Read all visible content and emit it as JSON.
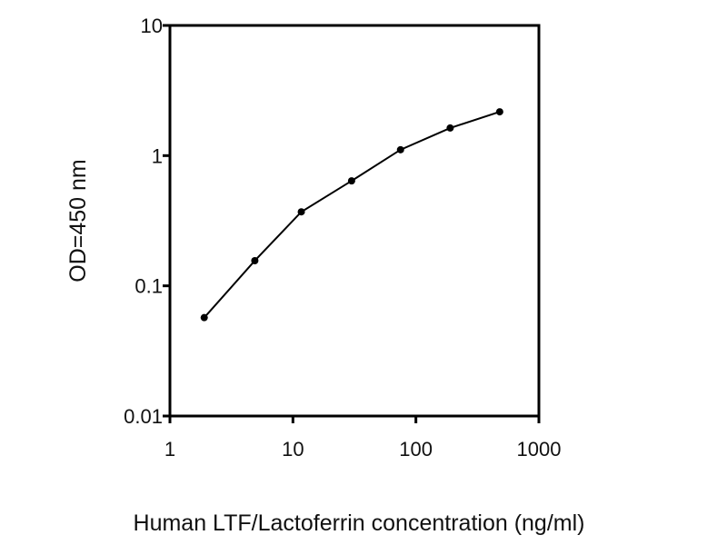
{
  "chart_data": {
    "type": "line",
    "title": "",
    "xlabel": "Human LTF/Lactoferrin concentration (ng/ml)",
    "ylabel": "OD=450 nm",
    "xscale": "log",
    "yscale": "log",
    "xlim": [
      1,
      1000
    ],
    "ylim": [
      0.01,
      10
    ],
    "xticks": [
      "1",
      "10",
      "100",
      "1000"
    ],
    "yticks": [
      "0.01",
      "0.1",
      "1",
      "10"
    ],
    "grid": false,
    "legend": "none",
    "line_color": "#000000",
    "series": [
      {
        "x": [
          1.9,
          4.9,
          11.7,
          30,
          75,
          190,
          480
        ],
        "y": [
          0.057,
          0.156,
          0.37,
          0.64,
          1.11,
          1.63,
          2.17
        ]
      }
    ]
  }
}
